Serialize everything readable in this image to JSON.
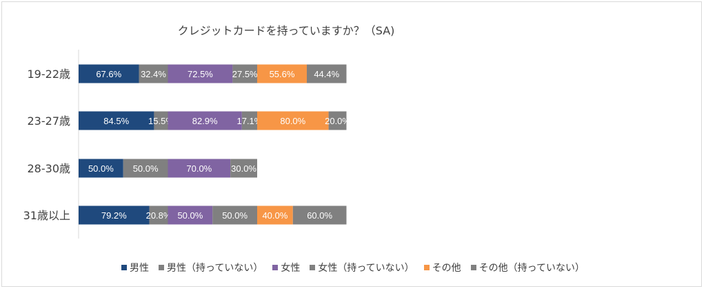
{
  "chart_data": {
    "type": "bar",
    "orientation": "horizontal-stacked",
    "title": "クレジットカードを持っていますか？（SA)",
    "categories": [
      "19-22歳",
      "23-27歳",
      "28-30歳",
      "31歳以上"
    ],
    "series": [
      {
        "name": "男性",
        "color": "#1f497d",
        "values": [
          67.6,
          84.5,
          50.0,
          79.2
        ],
        "labels": [
          "67.6%",
          "84.5%",
          "50.0%",
          "79.2%"
        ]
      },
      {
        "name": "男性（持っていない）",
        "color": "#808080",
        "values": [
          32.4,
          15.5,
          50.0,
          20.8
        ],
        "labels": [
          "32.4%",
          "15.5%",
          "50.0%",
          "20.8%"
        ]
      },
      {
        "name": "女性",
        "color": "#8064a2",
        "values": [
          72.5,
          82.9,
          70.0,
          50.0
        ],
        "labels": [
          "72.5%",
          "82.9%",
          "70.0%",
          "50.0%"
        ]
      },
      {
        "name": "女性（持っていない）",
        "color": "#808080",
        "values": [
          27.5,
          17.1,
          30.0,
          50.0
        ],
        "labels": [
          "27.5%",
          "17.1%",
          "30.0%",
          "50.0%"
        ]
      },
      {
        "name": "その他",
        "color": "#f79646",
        "values": [
          55.6,
          80.0,
          0,
          40.0
        ],
        "labels": [
          "55.6%",
          "80.0%",
          "",
          "40.0%"
        ]
      },
      {
        "name": "その他（持っていない）",
        "color": "#808080",
        "values": [
          44.4,
          20.0,
          0,
          60.0
        ],
        "labels": [
          "44.4%",
          "20.0%",
          "",
          "60.0%"
        ]
      }
    ],
    "xlim": [
      0,
      300
    ],
    "legend_position": "bottom",
    "grid": false,
    "data_labels": true
  }
}
